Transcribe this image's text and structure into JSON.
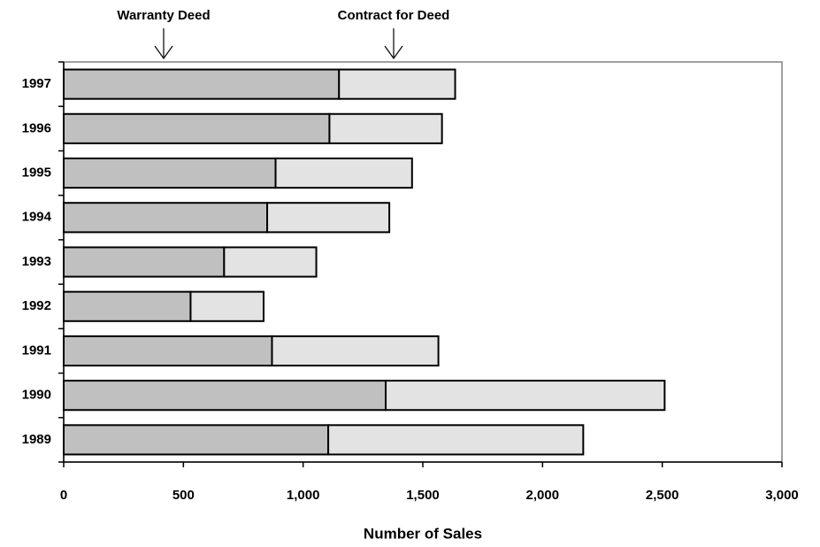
{
  "chart_data": {
    "type": "hbar-stacked",
    "xlabel": "Number of Sales",
    "categories": [
      "1997",
      "1996",
      "1995",
      "1994",
      "1993",
      "1992",
      "1991",
      "1990",
      "1989"
    ],
    "series": [
      {
        "name": "Warranty Deed",
        "color": "#c0c0c0",
        "values": [
          1150,
          1110,
          885,
          850,
          670,
          530,
          870,
          1345,
          1105
        ]
      },
      {
        "name": "Contract for Deed",
        "color": "#e3e3e3",
        "values": [
          485,
          470,
          570,
          510,
          385,
          305,
          695,
          1165,
          1065
        ]
      }
    ],
    "xlim": [
      0,
      3000
    ],
    "xticks": [
      0,
      500,
      {
        "value": 1000,
        "label": "1,000"
      },
      {
        "value": 1500,
        "label": "1,500"
      },
      {
        "value": 2000,
        "label": "2,000"
      },
      {
        "value": 2500,
        "label": "2,500"
      },
      {
        "value": 3000,
        "label": "3,000"
      }
    ]
  }
}
